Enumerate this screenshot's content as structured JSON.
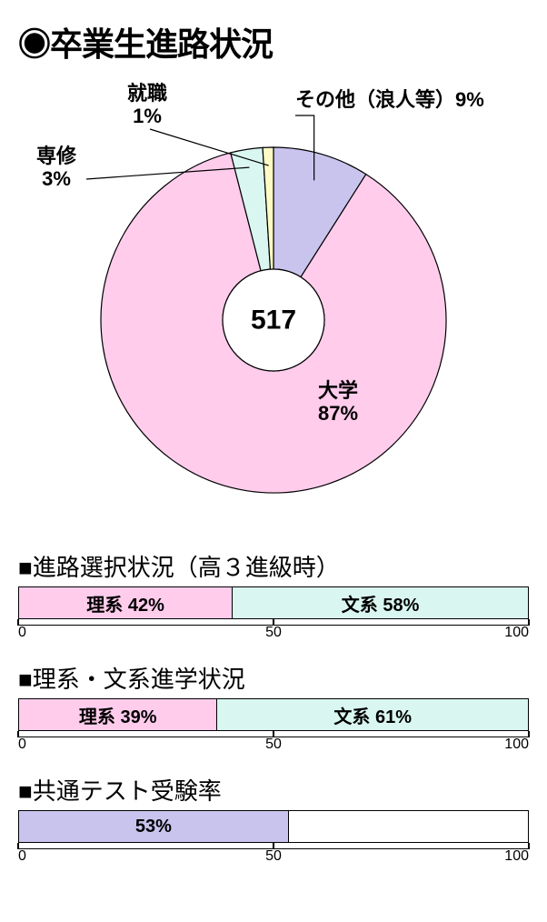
{
  "main": {
    "title": "◉卒業生進路状況",
    "center_value": "517",
    "chart": {
      "type": "donut",
      "inner_radius": 56,
      "outer_radius": 190,
      "stroke": "#000000",
      "stroke_width": 1.2,
      "slices": [
        {
          "label": "その他（浪人等）",
          "percent_text": "9%",
          "value": 9,
          "color": "#c9c4ee"
        },
        {
          "label": "大学",
          "percent_text": "87%",
          "value": 87,
          "color": "#ffccec"
        },
        {
          "label": "専修",
          "percent_text": "3%",
          "value": 3,
          "color": "#d9f7f0"
        },
        {
          "label": "就職",
          "percent_text": "1%",
          "value": 1,
          "color": "#fefac5"
        }
      ]
    },
    "labels_ext": {
      "other_line": "その他（浪人等）9%",
      "daigaku_l1": "大学",
      "daigaku_l2": "87%",
      "senshu_l1": "専修",
      "senshu_l2": "3%",
      "shushoku_l1": "就職",
      "shushoku_l2": "1%"
    }
  },
  "bars": [
    {
      "title": "■進路選択状況（高３進級時）",
      "segments": [
        {
          "text": "理系 42%",
          "value": 42,
          "color": "#ffccec"
        },
        {
          "text": "文系 58%",
          "value": 58,
          "color": "#d9f7f0"
        }
      ],
      "scale": {
        "ticks": [
          0,
          50,
          100
        ],
        "labels": [
          "0",
          "50",
          "100"
        ]
      }
    },
    {
      "title": "■理系・文系進学状況",
      "segments": [
        {
          "text": "理系 39%",
          "value": 39,
          "color": "#ffccec"
        },
        {
          "text": "文系 61%",
          "value": 61,
          "color": "#d9f7f0"
        }
      ],
      "scale": {
        "ticks": [
          0,
          50,
          100
        ],
        "labels": [
          "0",
          "50",
          "100"
        ]
      }
    },
    {
      "title": "■共通テスト受験率",
      "segments": [
        {
          "text": "53%",
          "value": 53,
          "color": "#c9c4ee"
        },
        {
          "text": "",
          "value": 47,
          "color": "#ffffff"
        }
      ],
      "scale": {
        "ticks": [
          0,
          50,
          100
        ],
        "labels": [
          "0",
          "50",
          "100"
        ]
      }
    }
  ]
}
